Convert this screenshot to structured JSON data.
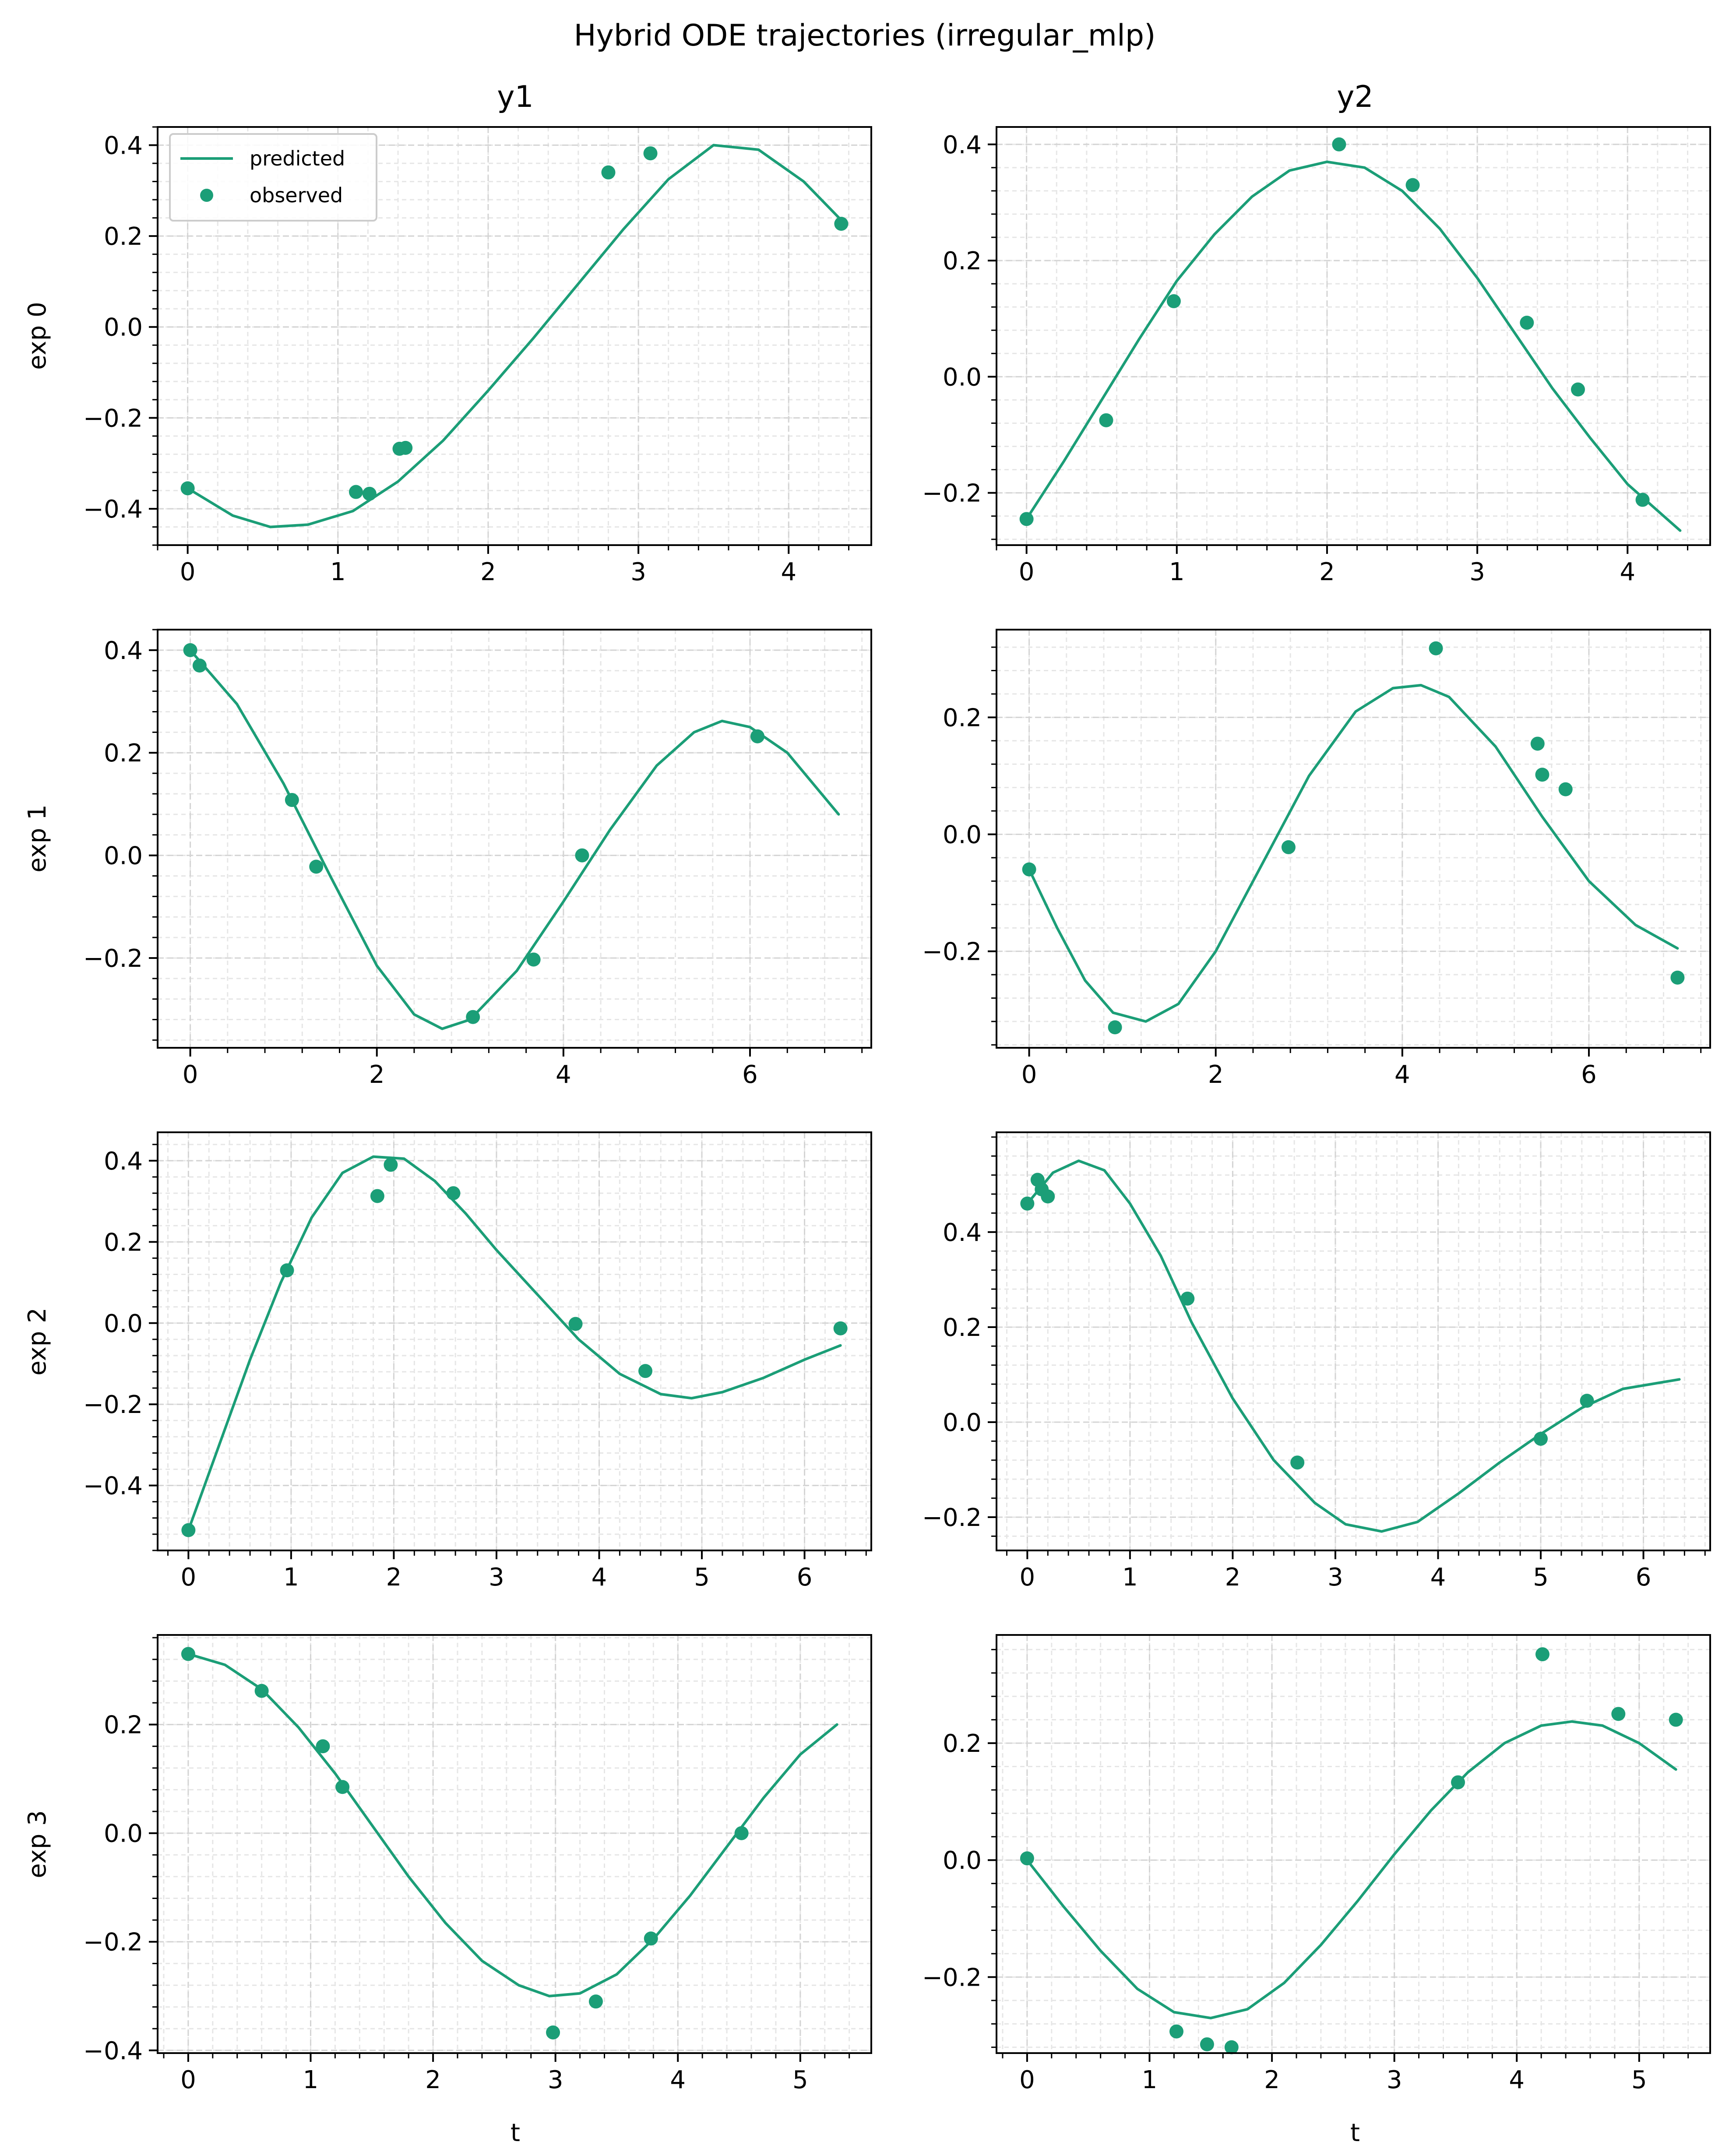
{
  "figure": {
    "title": "Hybrid ODE trajectories (irregular_mlp)",
    "column_titles": [
      "y1",
      "y2"
    ],
    "row_labels": [
      "exp 0",
      "exp 1",
      "exp 2",
      "exp 3"
    ],
    "xlabel": "t",
    "series_color": "#1b9e77",
    "legend": {
      "entries": [
        "predicted",
        "observed"
      ],
      "placement": "top-left (row 0, y1 panel)"
    }
  },
  "chart_data": [
    {
      "type": "line",
      "row": 0,
      "col": 0,
      "xlim": [
        -0.2,
        4.55
      ],
      "ylim": [
        -0.48,
        0.44
      ],
      "xticks": [
        0,
        1,
        2,
        3,
        4
      ],
      "xtick_labels": [
        "0",
        "1",
        "2",
        "3",
        "4"
      ],
      "yticks": [
        -0.4,
        -0.2,
        0.0,
        0.2,
        0.4
      ],
      "ytick_labels": [
        "−0.4",
        "−0.2",
        "0.0",
        "0.2",
        "0.4"
      ],
      "series": [
        {
          "name": "predicted",
          "kind": "line",
          "x": [
            0,
            0.3,
            0.55,
            0.8,
            1.1,
            1.4,
            1.7,
            2.0,
            2.3,
            2.6,
            2.9,
            3.2,
            3.5,
            3.8,
            4.1,
            4.35
          ],
          "y": [
            -0.355,
            -0.415,
            -0.44,
            -0.435,
            -0.405,
            -0.34,
            -0.25,
            -0.14,
            -0.025,
            0.095,
            0.215,
            0.325,
            0.4,
            0.39,
            0.32,
            0.235
          ]
        },
        {
          "name": "observed",
          "kind": "scatter",
          "x": [
            0,
            1.12,
            1.21,
            1.41,
            1.45,
            2.8,
            3.08,
            4.35
          ],
          "y": [
            -0.355,
            -0.363,
            -0.367,
            -0.268,
            -0.266,
            0.34,
            0.382,
            0.227
          ]
        }
      ]
    },
    {
      "type": "line",
      "row": 0,
      "col": 1,
      "xlim": [
        -0.2,
        4.55
      ],
      "ylim": [
        -0.29,
        0.43
      ],
      "xticks": [
        0,
        1,
        2,
        3,
        4
      ],
      "xtick_labels": [
        "0",
        "1",
        "2",
        "3",
        "4"
      ],
      "yticks": [
        -0.2,
        0.0,
        0.2,
        0.4
      ],
      "ytick_labels": [
        "−0.2",
        "0.0",
        "0.2",
        "0.4"
      ],
      "series": [
        {
          "name": "predicted",
          "kind": "line",
          "x": [
            0,
            0.25,
            0.5,
            0.75,
            1.0,
            1.25,
            1.5,
            1.75,
            2.0,
            2.25,
            2.5,
            2.75,
            3.0,
            3.25,
            3.5,
            3.75,
            4.0,
            4.35
          ],
          "y": [
            -0.245,
            -0.145,
            -0.04,
            0.065,
            0.165,
            0.245,
            0.31,
            0.355,
            0.37,
            0.36,
            0.32,
            0.255,
            0.17,
            0.075,
            -0.02,
            -0.105,
            -0.185,
            -0.265
          ]
        },
        {
          "name": "observed",
          "kind": "scatter",
          "x": [
            0,
            0.53,
            0.98,
            2.08,
            2.57,
            3.33,
            3.67,
            4.1
          ],
          "y": [
            -0.245,
            -0.075,
            0.13,
            0.4,
            0.33,
            0.093,
            -0.022,
            -0.212
          ]
        }
      ]
    },
    {
      "type": "line",
      "row": 1,
      "col": 0,
      "xlim": [
        -0.35,
        7.3
      ],
      "ylim": [
        -0.375,
        0.44
      ],
      "xticks": [
        0,
        2,
        4,
        6
      ],
      "xtick_labels": [
        "0",
        "2",
        "4",
        "6"
      ],
      "yticks": [
        -0.2,
        0.0,
        0.2,
        0.4
      ],
      "ytick_labels": [
        "−0.2",
        "0.0",
        "0.2",
        "0.4"
      ],
      "series": [
        {
          "name": "predicted",
          "kind": "line",
          "x": [
            0,
            0.5,
            1.0,
            1.5,
            2.0,
            2.4,
            2.7,
            3.0,
            3.5,
            4.0,
            4.5,
            5.0,
            5.4,
            5.7,
            6.0,
            6.4,
            6.95
          ],
          "y": [
            0.4,
            0.295,
            0.14,
            -0.04,
            -0.215,
            -0.31,
            -0.338,
            -0.32,
            -0.225,
            -0.09,
            0.05,
            0.175,
            0.24,
            0.262,
            0.25,
            0.2,
            0.08
          ]
        },
        {
          "name": "observed",
          "kind": "scatter",
          "x": [
            0,
            0.1,
            1.09,
            1.35,
            3.03,
            3.68,
            4.2,
            6.08
          ],
          "y": [
            0.4,
            0.37,
            0.108,
            -0.022,
            -0.315,
            -0.203,
            0.0,
            0.232
          ]
        }
      ]
    },
    {
      "type": "line",
      "row": 1,
      "col": 1,
      "xlim": [
        -0.35,
        7.3
      ],
      "ylim": [
        -0.365,
        0.35
      ],
      "xticks": [
        0,
        2,
        4,
        6
      ],
      "xtick_labels": [
        "0",
        "2",
        "4",
        "6"
      ],
      "yticks": [
        -0.2,
        0.0,
        0.2
      ],
      "ytick_labels": [
        "−0.2",
        "0.0",
        "0.2"
      ],
      "series": [
        {
          "name": "predicted",
          "kind": "line",
          "x": [
            0,
            0.3,
            0.6,
            0.9,
            1.25,
            1.6,
            2.0,
            2.5,
            3.0,
            3.5,
            3.9,
            4.2,
            4.5,
            5.0,
            5.5,
            6.0,
            6.5,
            6.95
          ],
          "y": [
            -0.06,
            -0.16,
            -0.25,
            -0.305,
            -0.32,
            -0.29,
            -0.2,
            -0.05,
            0.1,
            0.21,
            0.25,
            0.255,
            0.235,
            0.15,
            0.03,
            -0.08,
            -0.155,
            -0.195
          ]
        },
        {
          "name": "observed",
          "kind": "scatter",
          "x": [
            0,
            0.92,
            2.78,
            4.36,
            5.45,
            5.5,
            5.75,
            6.95
          ],
          "y": [
            -0.06,
            -0.33,
            -0.022,
            0.318,
            0.155,
            0.102,
            0.077,
            -0.245
          ]
        }
      ]
    },
    {
      "type": "line",
      "row": 2,
      "col": 0,
      "xlim": [
        -0.3,
        6.65
      ],
      "ylim": [
        -0.56,
        0.47
      ],
      "xticks": [
        0,
        1,
        2,
        3,
        4,
        5,
        6
      ],
      "xtick_labels": [
        "0",
        "1",
        "2",
        "3",
        "4",
        "5",
        "6"
      ],
      "yticks": [
        -0.4,
        -0.2,
        0.0,
        0.2,
        0.4
      ],
      "ytick_labels": [
        "−0.4",
        "−0.2",
        "0.0",
        "0.2",
        "0.4"
      ],
      "series": [
        {
          "name": "predicted",
          "kind": "line",
          "x": [
            0,
            0.3,
            0.6,
            0.9,
            1.2,
            1.5,
            1.8,
            2.1,
            2.4,
            2.7,
            3.0,
            3.4,
            3.8,
            4.2,
            4.6,
            4.9,
            5.2,
            5.6,
            6.0,
            6.35
          ],
          "y": [
            -0.51,
            -0.3,
            -0.09,
            0.1,
            0.26,
            0.37,
            0.41,
            0.405,
            0.35,
            0.27,
            0.18,
            0.07,
            -0.04,
            -0.125,
            -0.175,
            -0.185,
            -0.17,
            -0.135,
            -0.09,
            -0.055
          ]
        },
        {
          "name": "observed",
          "kind": "scatter",
          "x": [
            0,
            0.96,
            1.84,
            1.97,
            2.58,
            3.77,
            4.45,
            6.35
          ],
          "y": [
            -0.51,
            0.13,
            0.313,
            0.39,
            0.32,
            -0.002,
            -0.118,
            -0.013
          ]
        }
      ]
    },
    {
      "type": "line",
      "row": 2,
      "col": 1,
      "xlim": [
        -0.3,
        6.65
      ],
      "ylim": [
        -0.27,
        0.61
      ],
      "xticks": [
        0,
        1,
        2,
        3,
        4,
        5,
        6
      ],
      "xtick_labels": [
        "0",
        "1",
        "2",
        "3",
        "4",
        "5",
        "6"
      ],
      "yticks": [
        -0.2,
        0.0,
        0.2,
        0.4
      ],
      "ytick_labels": [
        "−0.2",
        "0.0",
        "0.2",
        "0.4"
      ],
      "series": [
        {
          "name": "predicted",
          "kind": "line",
          "x": [
            0,
            0.25,
            0.5,
            0.75,
            1.0,
            1.3,
            1.6,
            2.0,
            2.4,
            2.8,
            3.1,
            3.45,
            3.8,
            4.2,
            4.6,
            5.0,
            5.4,
            5.8,
            6.35
          ],
          "y": [
            0.46,
            0.525,
            0.55,
            0.53,
            0.46,
            0.35,
            0.21,
            0.05,
            -0.08,
            -0.17,
            -0.215,
            -0.23,
            -0.21,
            -0.15,
            -0.085,
            -0.025,
            0.03,
            0.07,
            0.09
          ]
        },
        {
          "name": "observed",
          "kind": "scatter",
          "x": [
            0,
            0.1,
            0.14,
            0.2,
            1.56,
            2.63,
            5.0,
            5.45
          ],
          "y": [
            0.46,
            0.51,
            0.49,
            0.475,
            0.26,
            -0.085,
            -0.035,
            0.045
          ]
        }
      ]
    },
    {
      "type": "line",
      "row": 3,
      "col": 0,
      "xlim": [
        -0.25,
        5.58
      ],
      "ylim": [
        -0.405,
        0.365
      ],
      "xticks": [
        0,
        1,
        2,
        3,
        4,
        5
      ],
      "xtick_labels": [
        "0",
        "1",
        "2",
        "3",
        "4",
        "5"
      ],
      "yticks": [
        -0.4,
        -0.2,
        0.0,
        0.2
      ],
      "ytick_labels": [
        "−0.4",
        "−0.2",
        "0.0",
        "0.2"
      ],
      "series": [
        {
          "name": "predicted",
          "kind": "line",
          "x": [
            0,
            0.3,
            0.6,
            0.9,
            1.2,
            1.5,
            1.8,
            2.1,
            2.4,
            2.7,
            2.95,
            3.2,
            3.5,
            3.8,
            4.1,
            4.4,
            4.7,
            5.0,
            5.3
          ],
          "y": [
            0.33,
            0.31,
            0.265,
            0.195,
            0.11,
            0.015,
            -0.08,
            -0.165,
            -0.235,
            -0.28,
            -0.3,
            -0.295,
            -0.26,
            -0.195,
            -0.115,
            -0.025,
            0.065,
            0.145,
            0.2
          ]
        },
        {
          "name": "observed",
          "kind": "scatter",
          "x": [
            0,
            0.6,
            1.1,
            1.26,
            2.98,
            3.33,
            3.78,
            4.52
          ],
          "y": [
            0.33,
            0.262,
            0.16,
            0.085,
            -0.367,
            -0.31,
            -0.194,
            0.0
          ]
        }
      ]
    },
    {
      "type": "line",
      "row": 3,
      "col": 1,
      "xlim": [
        -0.25,
        5.58
      ],
      "ylim": [
        -0.33,
        0.385
      ],
      "xticks": [
        0,
        1,
        2,
        3,
        4,
        5
      ],
      "xtick_labels": [
        "0",
        "1",
        "2",
        "3",
        "4",
        "5"
      ],
      "yticks": [
        -0.2,
        0.0,
        0.2
      ],
      "ytick_labels": [
        "−0.2",
        "0.0",
        "0.2"
      ],
      "series": [
        {
          "name": "predicted",
          "kind": "line",
          "x": [
            0,
            0.3,
            0.6,
            0.9,
            1.2,
            1.5,
            1.8,
            2.1,
            2.4,
            2.7,
            3.0,
            3.3,
            3.6,
            3.9,
            4.2,
            4.45,
            4.7,
            5.0,
            5.3
          ],
          "y": [
            0.0,
            -0.08,
            -0.155,
            -0.22,
            -0.26,
            -0.27,
            -0.255,
            -0.21,
            -0.145,
            -0.07,
            0.01,
            0.085,
            0.15,
            0.2,
            0.23,
            0.237,
            0.23,
            0.2,
            0.155
          ]
        },
        {
          "name": "observed",
          "kind": "scatter",
          "x": [
            0,
            1.22,
            1.47,
            1.67,
            3.52,
            4.21,
            4.83,
            5.3
          ],
          "y": [
            0.003,
            -0.293,
            -0.315,
            -0.32,
            0.133,
            0.352,
            0.25,
            0.24
          ]
        }
      ]
    }
  ]
}
